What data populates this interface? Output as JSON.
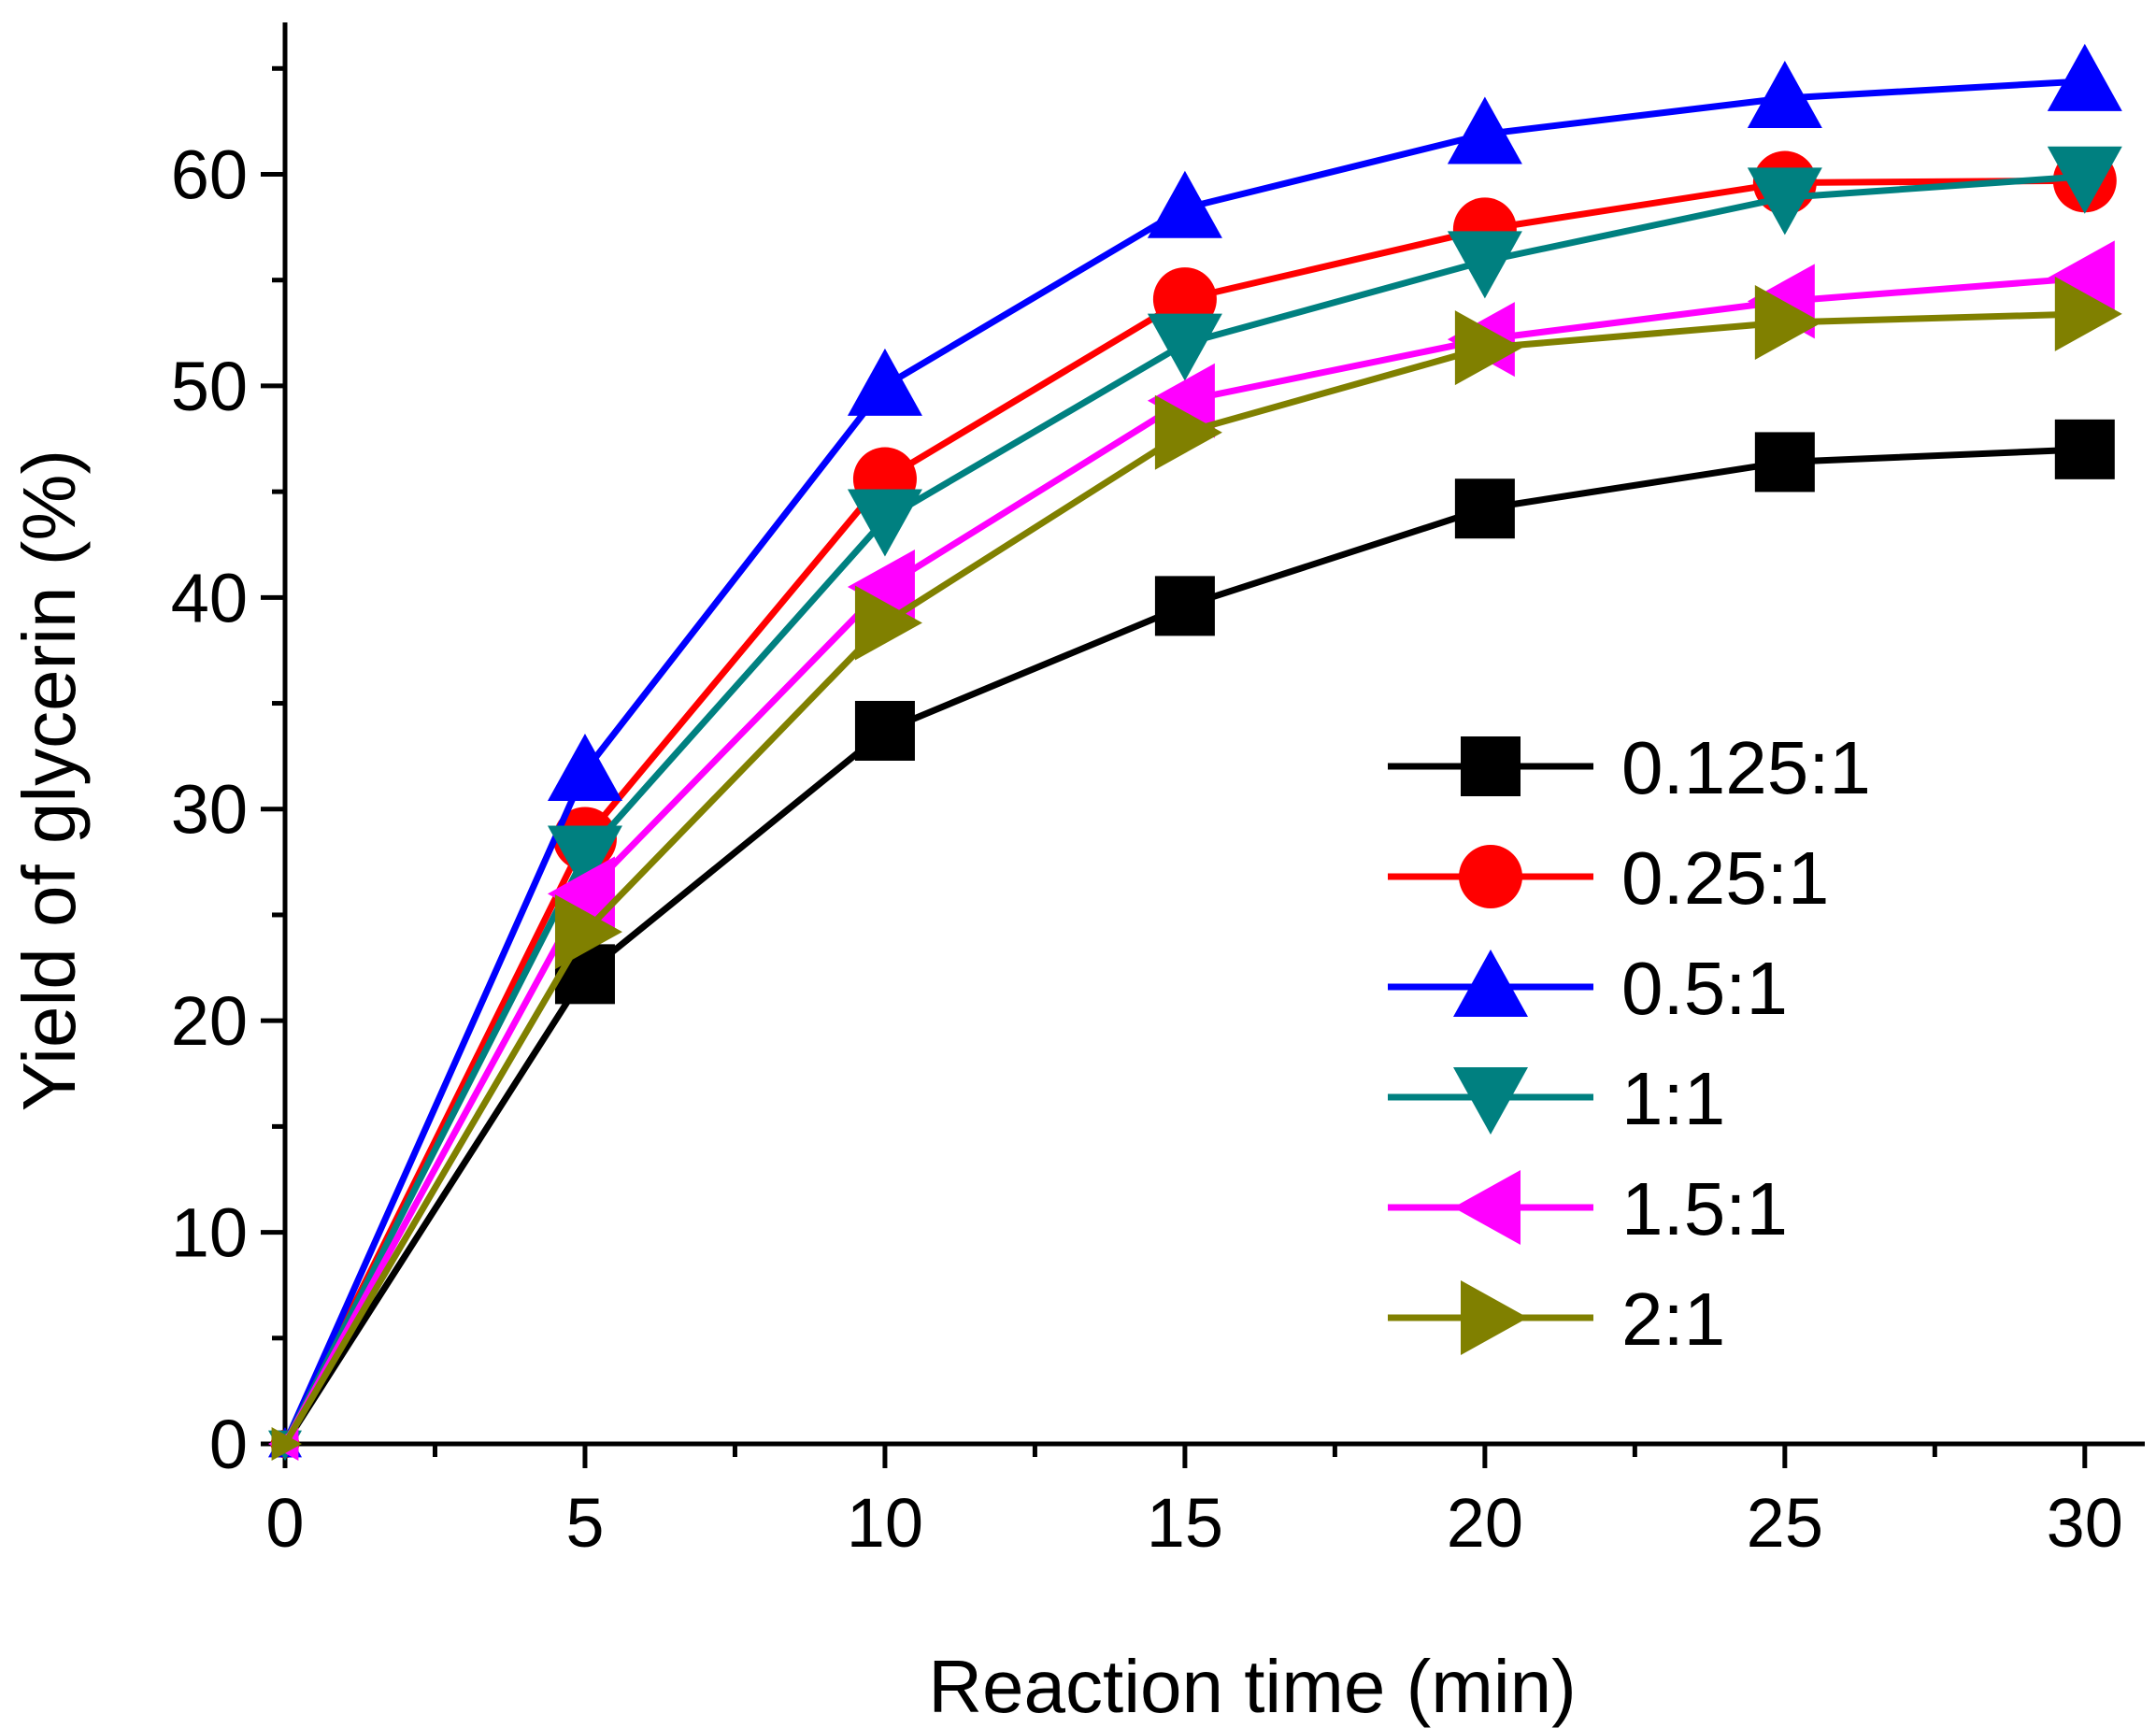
{
  "chart_data": {
    "type": "line",
    "title": "",
    "xlabel": "Reaction time (min)",
    "ylabel": "Yield of glycerin (%)",
    "xlim": [
      0,
      31
    ],
    "ylim": [
      0,
      67
    ],
    "xticks": [
      0,
      5,
      10,
      15,
      20,
      25,
      30
    ],
    "xtick_labels": [
      "0",
      "5",
      "10",
      "15",
      "20",
      "25",
      "30"
    ],
    "yticks": [
      0,
      10,
      20,
      30,
      40,
      50,
      60
    ],
    "ytick_labels": [
      "0",
      "10",
      "20",
      "30",
      "40",
      "50",
      "60"
    ],
    "grid": false,
    "legend_position": "right-center",
    "x": [
      0,
      5,
      10,
      15,
      20,
      25,
      30
    ],
    "series": [
      {
        "name": "0.125:1",
        "color": "#000000",
        "marker": "square",
        "values": [
          0,
          22.2,
          33.7,
          39.6,
          44.2,
          46.4,
          47.0
        ]
      },
      {
        "name": "0.25:1",
        "color": "#ff0000",
        "marker": "circle",
        "values": [
          0,
          28.6,
          45.6,
          54.1,
          57.4,
          59.6,
          59.7
        ]
      },
      {
        "name": "0.5:1",
        "color": "#0000ff",
        "marker": "triangle-up",
        "values": [
          0,
          31.8,
          50.0,
          58.4,
          61.9,
          63.6,
          64.4
        ]
      },
      {
        "name": "1:1",
        "color": "#008080",
        "marker": "triangle-down",
        "values": [
          0,
          27.8,
          43.7,
          52.0,
          55.9,
          58.9,
          59.9
        ]
      },
      {
        "name": "1.5:1",
        "color": "#ff00ff",
        "marker": "triangle-left",
        "values": [
          0,
          26.0,
          40.5,
          49.3,
          52.2,
          54.0,
          55.1
        ]
      },
      {
        "name": "2:1",
        "color": "#808000",
        "marker": "triangle-right",
        "values": [
          0,
          24.2,
          38.8,
          47.8,
          51.8,
          53.0,
          53.4
        ]
      }
    ]
  }
}
